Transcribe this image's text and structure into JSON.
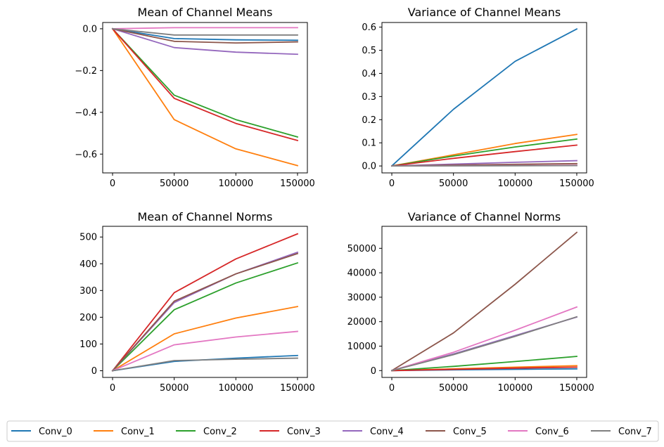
{
  "series_colors": [
    "#1f77b4",
    "#ff7f0e",
    "#2ca02c",
    "#d62728",
    "#9467bd",
    "#8c564b",
    "#e377c2",
    "#7f7f7f"
  ],
  "legend": {
    "items": [
      "Conv_0",
      "Conv_1",
      "Conv_2",
      "Conv_3",
      "Conv_4",
      "Conv_5",
      "Conv_6",
      "Conv_7"
    ]
  },
  "chart_data": [
    {
      "type": "line",
      "title": "Mean of Channel Means",
      "xlabel": "",
      "ylabel": "",
      "x": [
        0,
        50000,
        100000,
        150000
      ],
      "xticks": [
        0,
        50000,
        100000,
        150000
      ],
      "xlim": [
        -8000,
        158000
      ],
      "ylim": [
        -0.69,
        0.03
      ],
      "yticks": [
        -0.6,
        -0.4,
        -0.2,
        0.0
      ],
      "ytick_labels": [
        "−0.6",
        "−0.4",
        "−0.2",
        "0.0"
      ],
      "grid": false,
      "series": [
        {
          "name": "Conv_0",
          "values": [
            0.0,
            -0.047,
            -0.053,
            -0.055
          ]
        },
        {
          "name": "Conv_1",
          "values": [
            0.0,
            -0.435,
            -0.575,
            -0.655
          ]
        },
        {
          "name": "Conv_2",
          "values": [
            0.0,
            -0.318,
            -0.435,
            -0.518
          ]
        },
        {
          "name": "Conv_3",
          "values": [
            0.0,
            -0.333,
            -0.453,
            -0.535
          ]
        },
        {
          "name": "Conv_4",
          "values": [
            0.0,
            -0.09,
            -0.112,
            -0.122
          ]
        },
        {
          "name": "Conv_5",
          "values": [
            0.0,
            -0.06,
            -0.068,
            -0.063
          ]
        },
        {
          "name": "Conv_6",
          "values": [
            0.0,
            0.005,
            0.005,
            0.005
          ]
        },
        {
          "name": "Conv_7",
          "values": [
            0.0,
            -0.03,
            -0.03,
            -0.03
          ]
        }
      ]
    },
    {
      "type": "line",
      "title": "Variance of Channel Means",
      "xlabel": "",
      "ylabel": "",
      "x": [
        0,
        50000,
        100000,
        150000
      ],
      "xticks": [
        0,
        50000,
        100000,
        150000
      ],
      "xlim": [
        -8000,
        158000
      ],
      "ylim": [
        -0.03,
        0.62
      ],
      "yticks": [
        0.0,
        0.1,
        0.2,
        0.3,
        0.4,
        0.5,
        0.6
      ],
      "ytick_labels": [
        "0.0",
        "0.1",
        "0.2",
        "0.3",
        "0.4",
        "0.5",
        "0.6"
      ],
      "grid": false,
      "series": [
        {
          "name": "Conv_0",
          "values": [
            0.0,
            0.245,
            0.452,
            0.592
          ]
        },
        {
          "name": "Conv_1",
          "values": [
            0.0,
            0.048,
            0.097,
            0.136
          ]
        },
        {
          "name": "Conv_2",
          "values": [
            0.0,
            0.043,
            0.082,
            0.116
          ]
        },
        {
          "name": "Conv_3",
          "values": [
            0.0,
            0.033,
            0.062,
            0.09
          ]
        },
        {
          "name": "Conv_4",
          "values": [
            0.0,
            0.008,
            0.016,
            0.023
          ]
        },
        {
          "name": "Conv_5",
          "values": [
            0.0,
            0.004,
            0.007,
            0.01
          ]
        },
        {
          "name": "Conv_6",
          "values": [
            0.0,
            0.001,
            0.002,
            0.003
          ]
        },
        {
          "name": "Conv_7",
          "values": [
            0.0,
            0.0005,
            0.001,
            0.0015
          ]
        }
      ]
    },
    {
      "type": "line",
      "title": "Mean of Channel Norms",
      "xlabel": "",
      "ylabel": "",
      "x": [
        0,
        50000,
        100000,
        150000
      ],
      "xticks": [
        0,
        50000,
        100000,
        150000
      ],
      "xlim": [
        -8000,
        158000
      ],
      "ylim": [
        -25,
        540
      ],
      "yticks": [
        0,
        100,
        200,
        300,
        400,
        500
      ],
      "ytick_labels": [
        "0",
        "100",
        "200",
        "300",
        "400",
        "500"
      ],
      "grid": false,
      "series": [
        {
          "name": "Conv_0",
          "values": [
            0,
            35,
            47,
            57
          ]
        },
        {
          "name": "Conv_1",
          "values": [
            0,
            138,
            197,
            240
          ]
        },
        {
          "name": "Conv_2",
          "values": [
            0,
            228,
            328,
            403
          ]
        },
        {
          "name": "Conv_3",
          "values": [
            0,
            292,
            418,
            512
          ]
        },
        {
          "name": "Conv_4",
          "values": [
            0,
            255,
            362,
            443
          ]
        },
        {
          "name": "Conv_5",
          "values": [
            0,
            260,
            362,
            438
          ]
        },
        {
          "name": "Conv_6",
          "values": [
            0,
            97,
            126,
            147
          ]
        },
        {
          "name": "Conv_7",
          "values": [
            0,
            38,
            43,
            47
          ]
        }
      ]
    },
    {
      "type": "line",
      "title": "Variance of Channel Norms",
      "xlabel": "",
      "ylabel": "",
      "x": [
        0,
        50000,
        100000,
        150000
      ],
      "xticks": [
        0,
        50000,
        100000,
        150000
      ],
      "xlim": [
        -8000,
        158000
      ],
      "ylim": [
        -2800,
        59000
      ],
      "yticks": [
        0,
        10000,
        20000,
        30000,
        40000,
        50000
      ],
      "ytick_labels": [
        "0",
        "10000",
        "20000",
        "30000",
        "40000",
        "50000"
      ],
      "grid": false,
      "series": [
        {
          "name": "Conv_0",
          "values": [
            0,
            300,
            500,
            700
          ]
        },
        {
          "name": "Conv_1",
          "values": [
            0,
            700,
            1400,
            2000
          ]
        },
        {
          "name": "Conv_2",
          "values": [
            0,
            1700,
            3700,
            5800
          ]
        },
        {
          "name": "Conv_3",
          "values": [
            0,
            500,
            1000,
            1400
          ]
        },
        {
          "name": "Conv_4",
          "values": [
            0,
            6800,
            14300,
            21900
          ]
        },
        {
          "name": "Conv_5",
          "values": [
            0,
            15400,
            35300,
            56500
          ]
        },
        {
          "name": "Conv_6",
          "values": [
            0,
            7500,
            16500,
            26000
          ]
        },
        {
          "name": "Conv_7",
          "values": [
            0,
            6500,
            14000,
            22000
          ]
        }
      ]
    }
  ]
}
